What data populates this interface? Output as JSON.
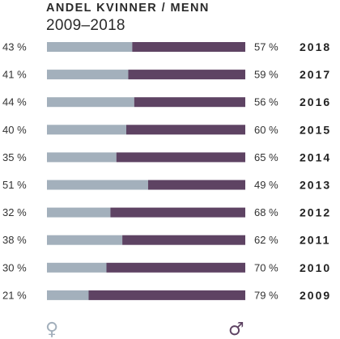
{
  "chart_data": {
    "type": "bar",
    "stacked": true,
    "orientation": "horizontal",
    "title": "ANDEL KVINNER / MENN",
    "subtitle": "2009–2018",
    "categories": [
      "2018",
      "2017",
      "2016",
      "2015",
      "2014",
      "2013",
      "2012",
      "2011",
      "2010",
      "2009"
    ],
    "series": [
      {
        "values": [
          43,
          41,
          44,
          40,
          35,
          51,
          32,
          38,
          30,
          21
        ],
        "color": "#a3b0bc"
      },
      {
        "values": [
          57,
          59,
          56,
          60,
          65,
          49,
          68,
          62,
          70,
          79
        ],
        "color": "#5e4363"
      }
    ],
    "value_suffix": " %",
    "xlim": [
      0,
      100
    ],
    "grid": false,
    "legend_symbols": {
      "left": "♀",
      "right": "♂"
    },
    "symbol_colors": {
      "left": "#a3b0bc",
      "right": "#5e4363"
    }
  }
}
